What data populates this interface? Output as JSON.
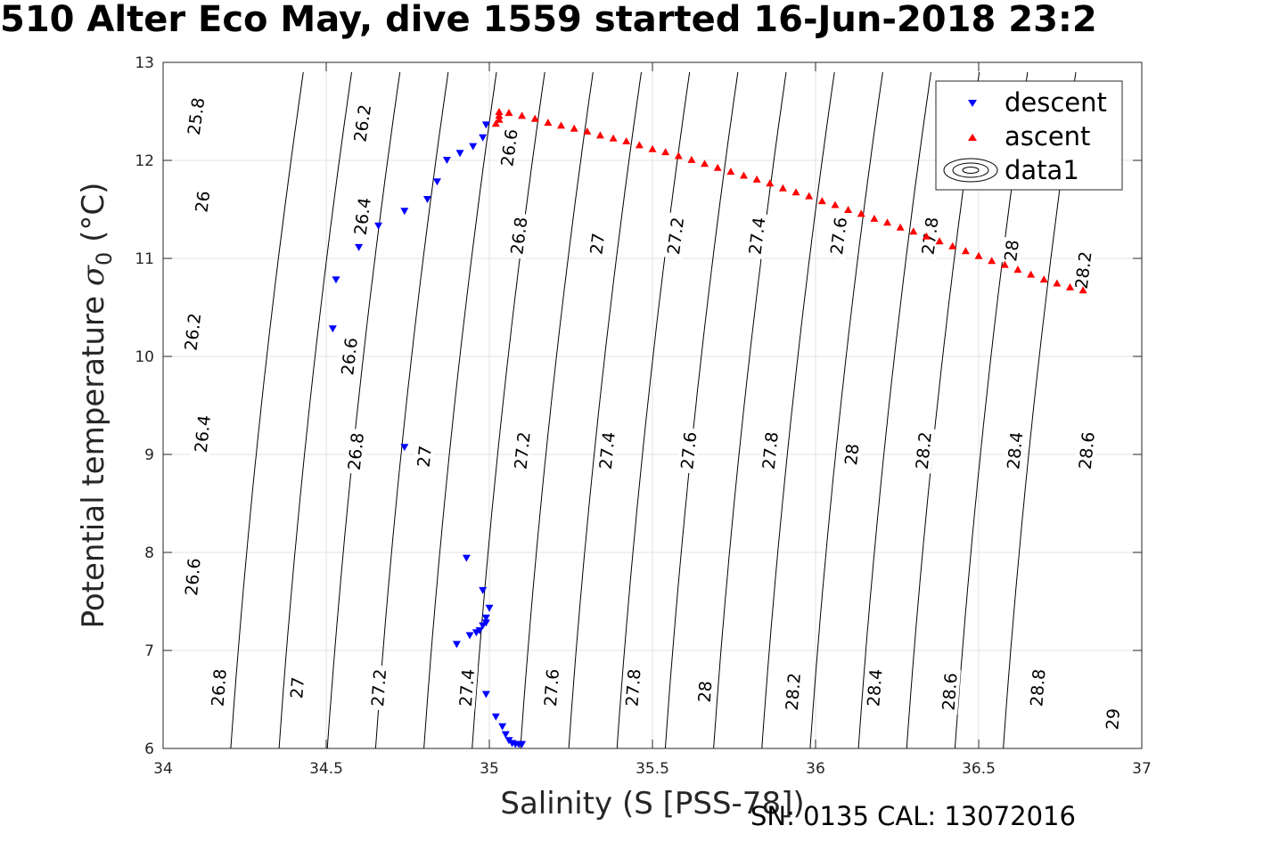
{
  "figure": {
    "title": "510 Alter Eco May, dive 1559 started 16-Jun-2018 23:2",
    "footer": "SN: 0135  CAL: 13072016"
  },
  "chart_data": {
    "type": "scatter",
    "title": "510 Alter Eco May, dive 1559 started 16-Jun-2018 23:2",
    "xlabel": "Salinity (S [PSS-78])",
    "ylabel_text": "Potential temperature ",
    "ylabel_symbol": "σ",
    "ylabel_subscript": "0",
    "ylabel_unit": " (°C)",
    "xlim": [
      34,
      37
    ],
    "ylim": [
      6,
      13
    ],
    "xticks": [
      34,
      34.5,
      35,
      35.5,
      36,
      36.5,
      37
    ],
    "xtick_labels": [
      "34",
      "34.5",
      "35",
      "35.5",
      "36",
      "36.5",
      "37"
    ],
    "yticks": [
      6,
      7,
      8,
      9,
      10,
      11,
      12,
      13
    ],
    "ytick_labels": [
      "6",
      "7",
      "8",
      "9",
      "10",
      "11",
      "12",
      "13"
    ],
    "grid": true,
    "legend": {
      "placement": "top-right",
      "entries": [
        {
          "label": "descent",
          "marker": "triangle-down",
          "color": "#0000ff"
        },
        {
          "label": "ascent",
          "marker": "triangle-up",
          "color": "#ff0000"
        },
        {
          "label": "data1",
          "marker": "contour",
          "color": "#000000"
        }
      ]
    },
    "series": [
      {
        "name": "descent",
        "marker": "triangle-down",
        "color": "#0000ff",
        "points": [
          [
            34.99,
            12.36
          ],
          [
            34.98,
            12.23
          ],
          [
            34.95,
            12.14
          ],
          [
            34.91,
            12.07
          ],
          [
            34.87,
            12.0
          ],
          [
            34.84,
            11.78
          ],
          [
            34.81,
            11.6
          ],
          [
            34.74,
            11.48
          ],
          [
            34.66,
            11.33
          ],
          [
            34.6,
            11.11
          ],
          [
            34.53,
            10.78
          ],
          [
            34.52,
            10.28
          ],
          [
            34.74,
            9.07
          ],
          [
            34.93,
            7.94
          ],
          [
            34.98,
            7.61
          ],
          [
            35.0,
            7.43
          ],
          [
            34.99,
            7.33
          ],
          [
            34.99,
            7.28
          ],
          [
            34.98,
            7.25
          ],
          [
            34.97,
            7.2
          ],
          [
            34.96,
            7.18
          ],
          [
            34.94,
            7.15
          ],
          [
            34.9,
            7.06
          ],
          [
            34.99,
            6.55
          ],
          [
            35.02,
            6.32
          ],
          [
            35.04,
            6.22
          ],
          [
            35.05,
            6.14
          ],
          [
            35.06,
            6.08
          ],
          [
            35.07,
            6.05
          ],
          [
            35.08,
            6.04
          ],
          [
            35.09,
            6.04
          ],
          [
            35.1,
            6.04
          ]
        ]
      },
      {
        "name": "ascent",
        "marker": "triangle-up",
        "color": "#ff0000",
        "points": [
          [
            35.02,
            12.38
          ],
          [
            35.03,
            12.42
          ],
          [
            35.03,
            12.46
          ],
          [
            35.03,
            12.5
          ],
          [
            35.06,
            12.49
          ],
          [
            35.1,
            12.46
          ],
          [
            35.14,
            12.43
          ],
          [
            35.18,
            12.39
          ],
          [
            35.22,
            12.36
          ],
          [
            35.26,
            12.33
          ],
          [
            35.3,
            12.3
          ],
          [
            35.34,
            12.26
          ],
          [
            35.38,
            12.23
          ],
          [
            35.42,
            12.2
          ],
          [
            35.46,
            12.16
          ],
          [
            35.5,
            12.12
          ],
          [
            35.54,
            12.09
          ],
          [
            35.58,
            12.05
          ],
          [
            35.62,
            12.01
          ],
          [
            35.66,
            11.97
          ],
          [
            35.7,
            11.93
          ],
          [
            35.74,
            11.89
          ],
          [
            35.78,
            11.85
          ],
          [
            35.82,
            11.81
          ],
          [
            35.86,
            11.77
          ],
          [
            35.9,
            11.72
          ],
          [
            35.94,
            11.68
          ],
          [
            35.98,
            11.64
          ],
          [
            36.02,
            11.59
          ],
          [
            36.06,
            11.55
          ],
          [
            36.1,
            11.5
          ],
          [
            36.14,
            11.46
          ],
          [
            36.18,
            11.41
          ],
          [
            36.22,
            11.37
          ],
          [
            36.26,
            11.32
          ],
          [
            36.3,
            11.28
          ],
          [
            36.34,
            11.23
          ],
          [
            36.38,
            11.18
          ],
          [
            36.42,
            11.13
          ],
          [
            36.46,
            11.08
          ],
          [
            36.5,
            11.03
          ],
          [
            36.54,
            10.98
          ],
          [
            36.58,
            10.94
          ],
          [
            36.62,
            10.89
          ],
          [
            36.66,
            10.84
          ],
          [
            36.7,
            10.79
          ],
          [
            36.74,
            10.75
          ],
          [
            36.78,
            10.71
          ],
          [
            36.82,
            10.68
          ]
        ]
      }
    ],
    "contours": {
      "name": "data1",
      "quantity": "sigma0",
      "levels": [
        25.8,
        26,
        26.2,
        26.4,
        26.6,
        26.8,
        27,
        27.2,
        27.4,
        27.6,
        27.8,
        28,
        28.2,
        28.4,
        28.6,
        28.8,
        29
      ],
      "labels": [
        {
          "text": "25.8",
          "x": 34.1,
          "y": 12.45
        },
        {
          "text": "26.2",
          "x": 34.61,
          "y": 12.38
        },
        {
          "text": "26",
          "x": 34.12,
          "y": 11.58
        },
        {
          "text": "26.4",
          "x": 34.61,
          "y": 11.43
        },
        {
          "text": "26.6",
          "x": 35.06,
          "y": 12.13
        },
        {
          "text": "26.8",
          "x": 35.09,
          "y": 11.23
        },
        {
          "text": "27",
          "x": 35.33,
          "y": 11.15
        },
        {
          "text": "27.2",
          "x": 35.57,
          "y": 11.23
        },
        {
          "text": "27.4",
          "x": 35.82,
          "y": 11.23
        },
        {
          "text": "27.6",
          "x": 36.07,
          "y": 11.23
        },
        {
          "text": "27.8",
          "x": 36.35,
          "y": 11.23
        },
        {
          "text": "28",
          "x": 36.6,
          "y": 11.08
        },
        {
          "text": "28.2",
          "x": 36.82,
          "y": 10.88
        },
        {
          "text": "26.2",
          "x": 34.09,
          "y": 10.25
        },
        {
          "text": "26.6",
          "x": 34.57,
          "y": 10.0
        },
        {
          "text": "26.4",
          "x": 34.12,
          "y": 9.21
        },
        {
          "text": "26.8",
          "x": 34.59,
          "y": 9.03
        },
        {
          "text": "27",
          "x": 34.8,
          "y": 8.98
        },
        {
          "text": "27.2",
          "x": 35.1,
          "y": 9.04
        },
        {
          "text": "27.4",
          "x": 35.36,
          "y": 9.04
        },
        {
          "text": "27.6",
          "x": 35.61,
          "y": 9.04
        },
        {
          "text": "27.8",
          "x": 35.86,
          "y": 9.04
        },
        {
          "text": "28",
          "x": 36.11,
          "y": 9.0
        },
        {
          "text": "28.2",
          "x": 36.33,
          "y": 9.04
        },
        {
          "text": "28.4",
          "x": 36.61,
          "y": 9.04
        },
        {
          "text": "28.6",
          "x": 36.83,
          "y": 9.04
        },
        {
          "text": "26.6",
          "x": 34.09,
          "y": 7.75
        },
        {
          "text": "26.8",
          "x": 34.17,
          "y": 6.62
        },
        {
          "text": "27",
          "x": 34.41,
          "y": 6.62
        },
        {
          "text": "27.2",
          "x": 34.66,
          "y": 6.62
        },
        {
          "text": "27.4",
          "x": 34.93,
          "y": 6.62
        },
        {
          "text": "27.6",
          "x": 35.19,
          "y": 6.62
        },
        {
          "text": "27.8",
          "x": 35.44,
          "y": 6.62
        },
        {
          "text": "28",
          "x": 35.66,
          "y": 6.58
        },
        {
          "text": "28.2",
          "x": 35.93,
          "y": 6.58
        },
        {
          "text": "28.4",
          "x": 36.18,
          "y": 6.62
        },
        {
          "text": "28.6",
          "x": 36.41,
          "y": 6.58
        },
        {
          "text": "28.8",
          "x": 36.68,
          "y": 6.62
        },
        {
          "text": "29",
          "x": 36.91,
          "y": 6.3
        }
      ]
    }
  }
}
